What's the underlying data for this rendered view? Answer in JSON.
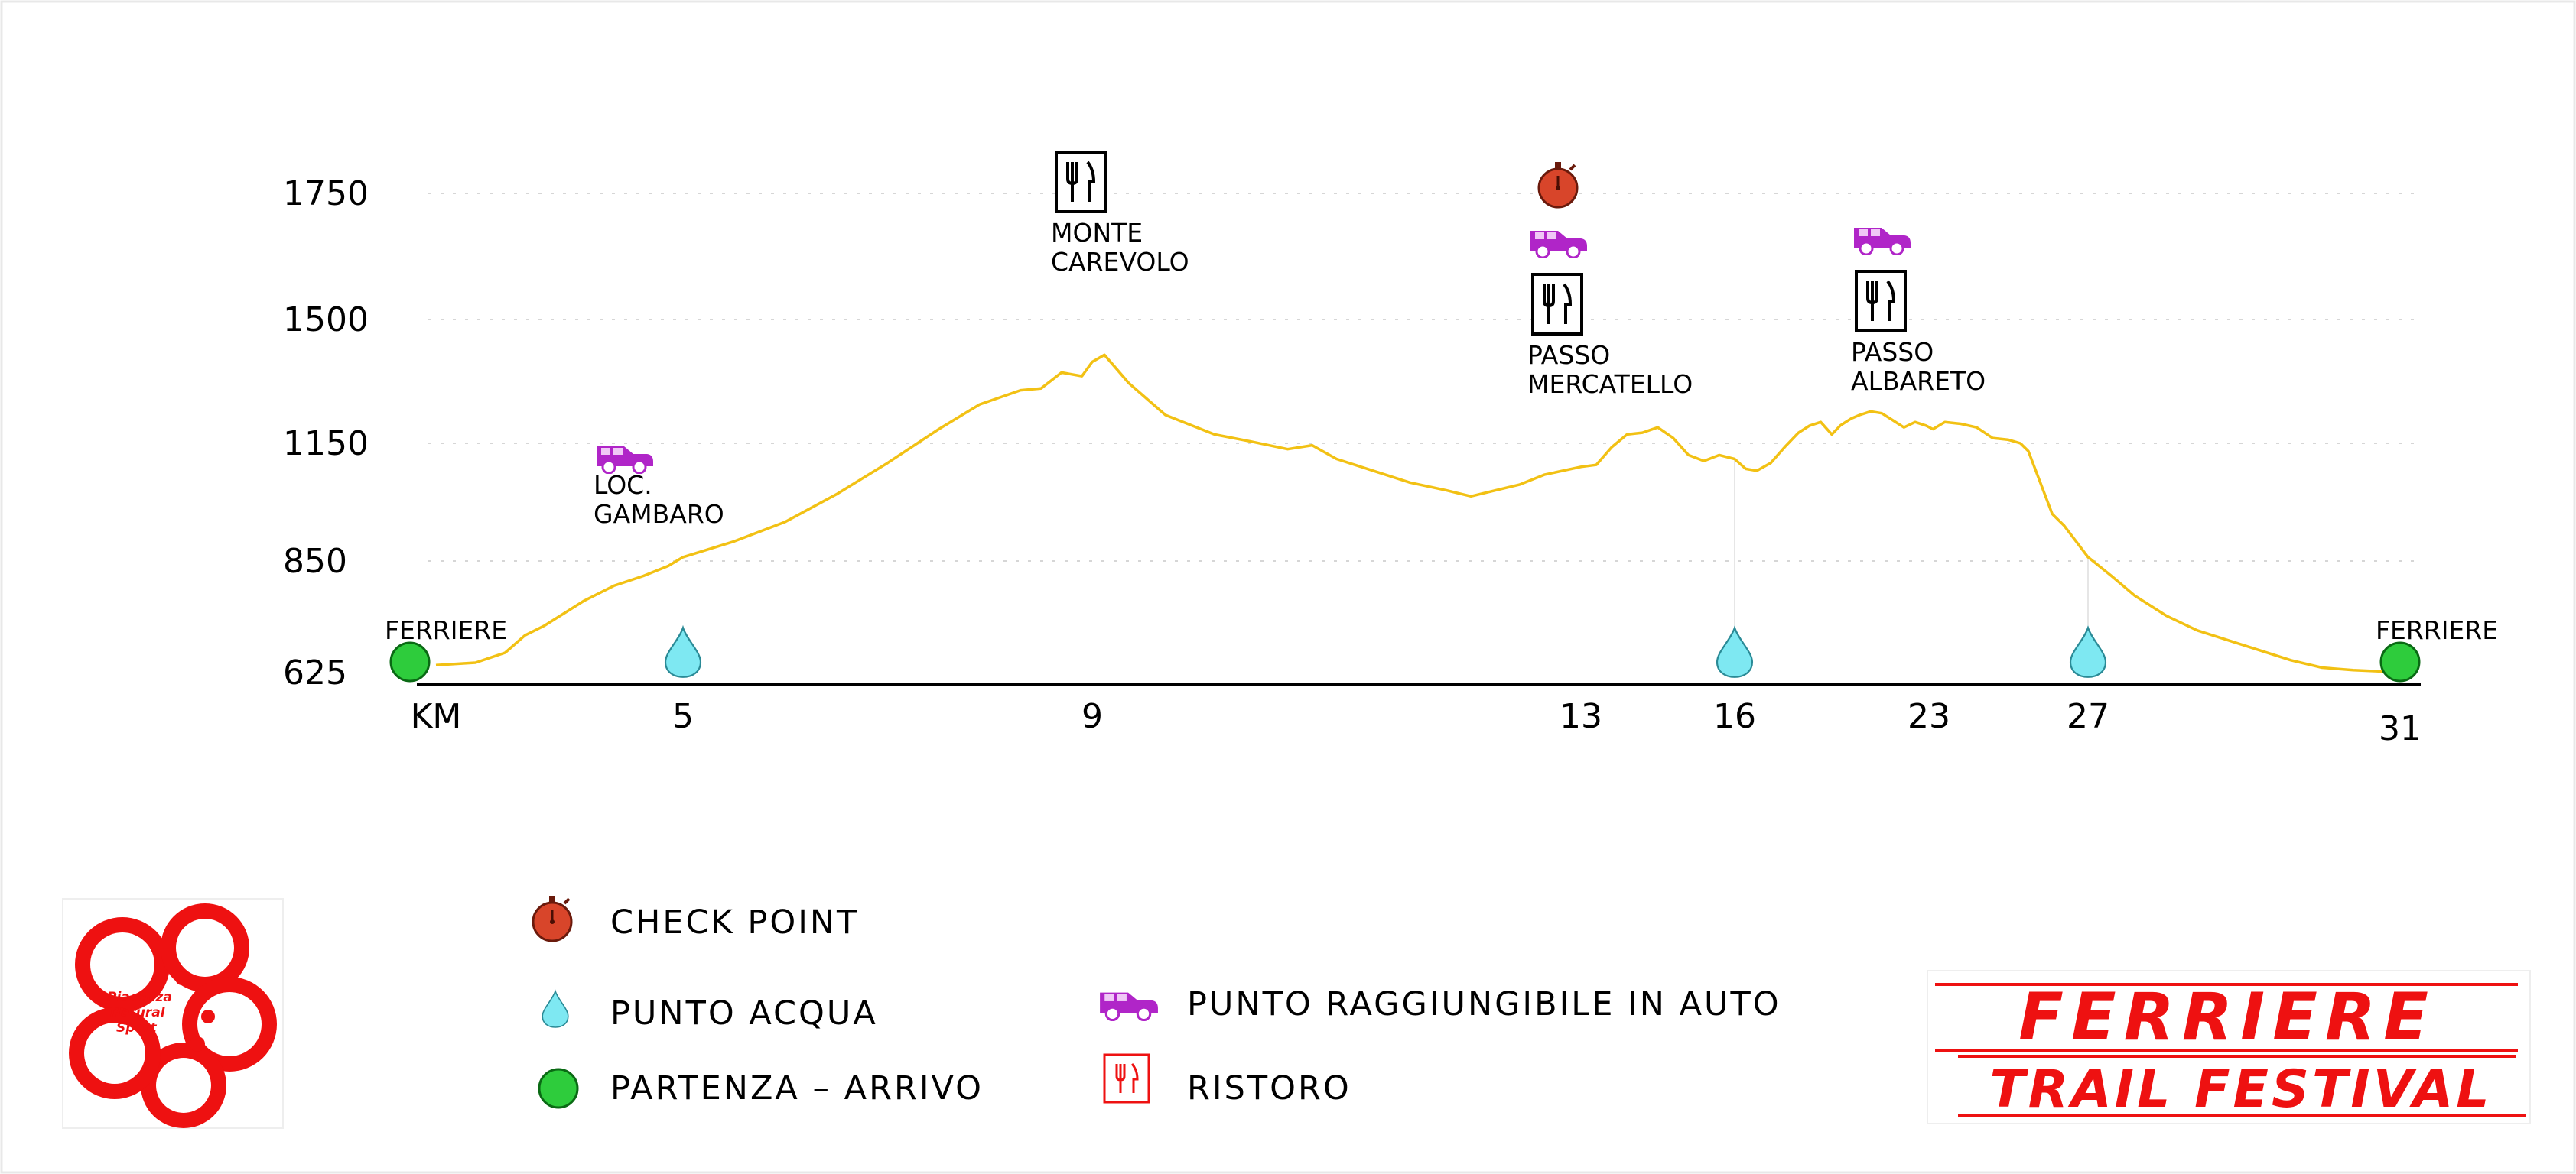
{
  "chart_data": {
    "type": "area",
    "x_axis": {
      "label": "KM",
      "ticks": [
        "5",
        "9",
        "13",
        "16",
        "23",
        "27",
        "31"
      ]
    },
    "y_axis": {
      "ticks": [
        "625",
        "850",
        "1150",
        "1500",
        "1750"
      ]
    },
    "grid": true,
    "series": [
      {
        "color": "#f2c114",
        "x": [
          0,
          0.8,
          1.4,
          1.8,
          2.2,
          2.6,
          3.0,
          3.6,
          4.2,
          4.7,
          5.0,
          5.5,
          6.0,
          6.5,
          7.0,
          7.5,
          7.9,
          8.3,
          8.5,
          8.7,
          8.9,
          9.0,
          9.1,
          9.3,
          9.6,
          10.0,
          10.3,
          10.6,
          10.8,
          11.0,
          11.3,
          11.6,
          11.9,
          12.1,
          12.3,
          12.5,
          12.7,
          13.0,
          13.3,
          13.6,
          13.9,
          14.2,
          14.5,
          14.8,
          15.1,
          15.4,
          15.7,
          16.0,
          16.4,
          16.8,
          17.3,
          17.8,
          18.3,
          18.7,
          19.1,
          19.5,
          19.8,
          20.0,
          20.2,
          20.5,
          20.9,
          21.3,
          21.7,
          22.1,
          22.5,
          22.9,
          23.1,
          23.4,
          23.8,
          24.2,
          24.6,
          25.0,
          25.3,
          25.5,
          25.8,
          26.1,
          26.4,
          26.7,
          27.0,
          27.3,
          27.6,
          28.0,
          28.4,
          28.8,
          29.2,
          29.6,
          30.0,
          30.4,
          30.7,
          31.0
        ],
        "y": [
          640,
          645,
          665,
          700,
          720,
          745,
          770,
          800,
          820,
          840,
          860,
          900,
          950,
          1020,
          1100,
          1190,
          1260,
          1300,
          1305,
          1350,
          1340,
          1380,
          1400,
          1320,
          1230,
          1175,
          1155,
          1135,
          1145,
          1110,
          1080,
          1050,
          1030,
          1015,
          1030,
          1045,
          1070,
          1090,
          1095,
          1140,
          1175,
          1180,
          1195,
          1165,
          1120,
          1105,
          1120,
          1110,
          1085,
          1080,
          1100,
          1140,
          1180,
          1200,
          1210,
          1175,
          1200,
          1210,
          1220,
          1230,
          1240,
          1235,
          1215,
          1195,
          1210,
          1200,
          1190,
          1210,
          1205,
          1195,
          1165,
          1160,
          1150,
          1130,
          1050,
          970,
          940,
          900,
          860,
          820,
          780,
          740,
          710,
          690,
          670,
          650,
          635,
          630,
          628,
          625
        ]
      }
    ],
    "annotations": [
      {
        "text": [
          "FERRIERE"
        ],
        "km": 0,
        "icons": [
          "start-finish"
        ]
      },
      {
        "text": [
          "LOC.",
          "GAMBARO"
        ],
        "km": 4,
        "icons": [
          "car"
        ]
      },
      {
        "text": [],
        "km": 5,
        "icons": [
          "water"
        ]
      },
      {
        "text": [
          "MONTE",
          "CAREVOLO"
        ],
        "km": 9,
        "icons": [
          "refreshment"
        ]
      },
      {
        "text": [
          "PASSO",
          "MERCATELLO"
        ],
        "km": 13,
        "icons": [
          "checkpoint",
          "car",
          "refreshment"
        ]
      },
      {
        "text": [],
        "km": 16,
        "icons": [
          "water"
        ]
      },
      {
        "text": [
          "PASSO",
          "ALBARETO"
        ],
        "km": 23,
        "icons": [
          "car",
          "refreshment"
        ]
      },
      {
        "text": [],
        "km": 27,
        "icons": [
          "water"
        ]
      },
      {
        "text": [
          "FERRIERE"
        ],
        "km": 31,
        "icons": [
          "start-finish"
        ]
      }
    ]
  },
  "legend": [
    {
      "icon": "checkpoint",
      "label": "CHECK POINT"
    },
    {
      "icon": "water",
      "label": "PUNTO ACQUA"
    },
    {
      "icon": "start-finish",
      "label": "PARTENZA – ARRIVO"
    },
    {
      "icon": "car",
      "label": "PUNTO RAGGIUNGIBILE IN AUTO"
    },
    {
      "icon": "refreshment",
      "label": "RISTORO"
    }
  ],
  "logos": {
    "left_text": [
      "Piacenza",
      "Natural",
      "Sport"
    ],
    "right_text": [
      "FERRIERE",
      "TRAIL FESTIVAL"
    ]
  },
  "colors": {
    "profile_line": "#f2c114",
    "water": "#7ee8f2",
    "start": "#2ecc3c",
    "checkpoint": "#d8452a",
    "car": "#b025c8",
    "brand_red": "#ee1111"
  }
}
